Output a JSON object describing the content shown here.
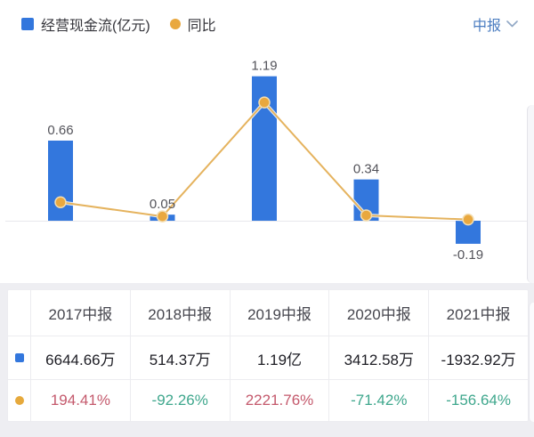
{
  "header": {
    "legend": [
      {
        "label": "经营现金流(亿元)",
        "swatch": "blue-square",
        "color": "#3377dd"
      },
      {
        "label": "同比",
        "swatch": "orange-dot",
        "color": "#e9a83f"
      }
    ],
    "period_selector": {
      "label": "中报"
    }
  },
  "chart_data": {
    "type": "bar",
    "categories": [
      "2017中报",
      "2018中报",
      "2019中报",
      "2020中报",
      "2021中报"
    ],
    "series": [
      {
        "name": "经营现金流(亿元)",
        "type": "bar",
        "values": [
          0.66,
          0.05,
          1.19,
          0.34,
          -0.19
        ],
        "labels": [
          "0.66",
          "0.05",
          "1.19",
          "0.34",
          "-0.19"
        ],
        "color": "#3377dd"
      },
      {
        "name": "同比",
        "type": "line",
        "unit": "%",
        "values": [
          194.41,
          -92.26,
          2221.76,
          -71.42,
          -156.64
        ],
        "color": "#e5b35e",
        "point_color": "#e9a83f"
      }
    ],
    "title": "",
    "xlabel": "",
    "ylabel": "亿元",
    "y2label": "%",
    "axes_visible": false,
    "grid": false,
    "legend_position": "top",
    "label_color": "#53535a",
    "baseline_color": "#e8e8ec"
  },
  "table": {
    "columns": [
      "2017中报",
      "2018中报",
      "2019中报",
      "2020中报",
      "2021中报"
    ],
    "rows": [
      {
        "icon": "blue-square",
        "series": "经营现金流",
        "values": [
          "6644.66万",
          "514.37万",
          "1.19亿",
          "3412.58万",
          "-1932.92万"
        ]
      },
      {
        "icon": "orange-dot",
        "series": "同比",
        "values": [
          "194.41%",
          "-92.26%",
          "2221.76%",
          "-71.42%",
          "-156.64%"
        ],
        "value_colors": [
          "#c4596c",
          "#3fa78d",
          "#c4596c",
          "#3fa78d",
          "#3fa78d"
        ]
      }
    ]
  }
}
